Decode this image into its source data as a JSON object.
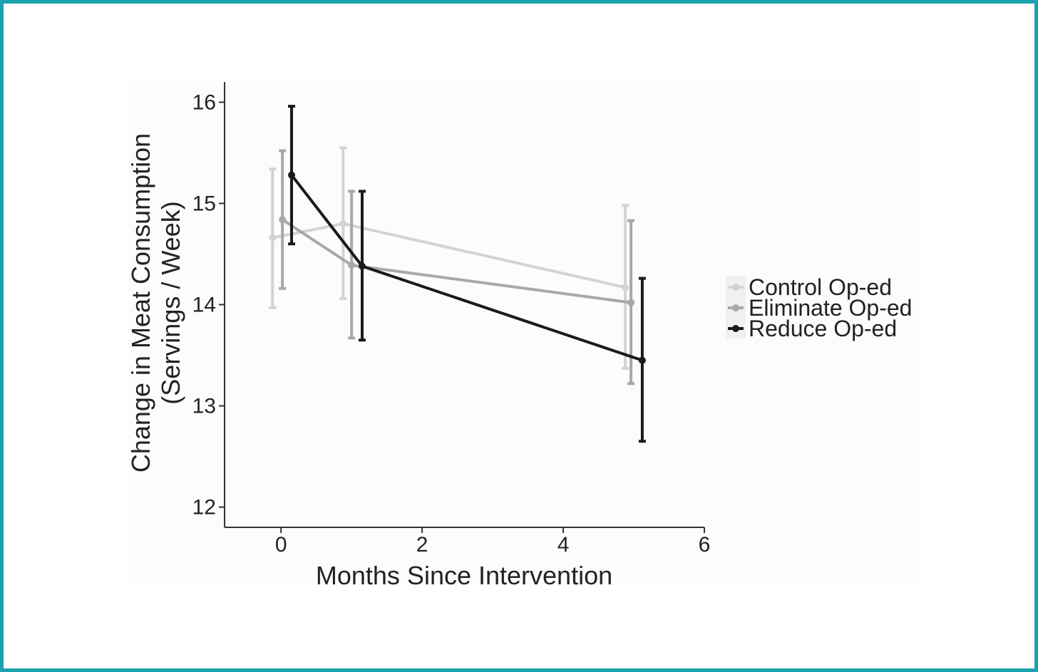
{
  "chart_data": {
    "type": "line",
    "xlabel": "Months Since Intervention",
    "ylabel_line1": "Change in Meat Consumption",
    "ylabel_line2": "(Servings / Week)",
    "xlim": [
      -0.8,
      6
    ],
    "ylim": [
      11.8,
      16.2
    ],
    "x_ticks": [
      0,
      2,
      4,
      6
    ],
    "y_ticks": [
      12,
      13,
      14,
      15,
      16
    ],
    "grid": false,
    "legend_position": "right",
    "error_bars": true,
    "series": [
      {
        "name": "Control Op-ed",
        "color": "#d3d3d3",
        "points": [
          {
            "x": -0.12,
            "y": 14.66,
            "lo": 13.97,
            "hi": 15.34
          },
          {
            "x": 0.88,
            "y": 14.8,
            "lo": 14.06,
            "hi": 15.55
          },
          {
            "x": 4.88,
            "y": 14.17,
            "lo": 13.37,
            "hi": 14.98
          }
        ]
      },
      {
        "name": "Eliminate Op-ed",
        "color": "#a8a8a8",
        "points": [
          {
            "x": 0.02,
            "y": 14.84,
            "lo": 14.16,
            "hi": 15.52
          },
          {
            "x": 1.0,
            "y": 14.39,
            "lo": 13.67,
            "hi": 15.12
          },
          {
            "x": 4.96,
            "y": 14.02,
            "lo": 13.22,
            "hi": 14.83
          }
        ]
      },
      {
        "name": "Reduce Op-ed",
        "color": "#1a1a1a",
        "points": [
          {
            "x": 0.15,
            "y": 15.28,
            "lo": 14.6,
            "hi": 15.96
          },
          {
            "x": 1.15,
            "y": 14.38,
            "lo": 13.65,
            "hi": 15.12
          },
          {
            "x": 5.12,
            "y": 13.45,
            "lo": 12.65,
            "hi": 14.26
          }
        ]
      }
    ]
  }
}
